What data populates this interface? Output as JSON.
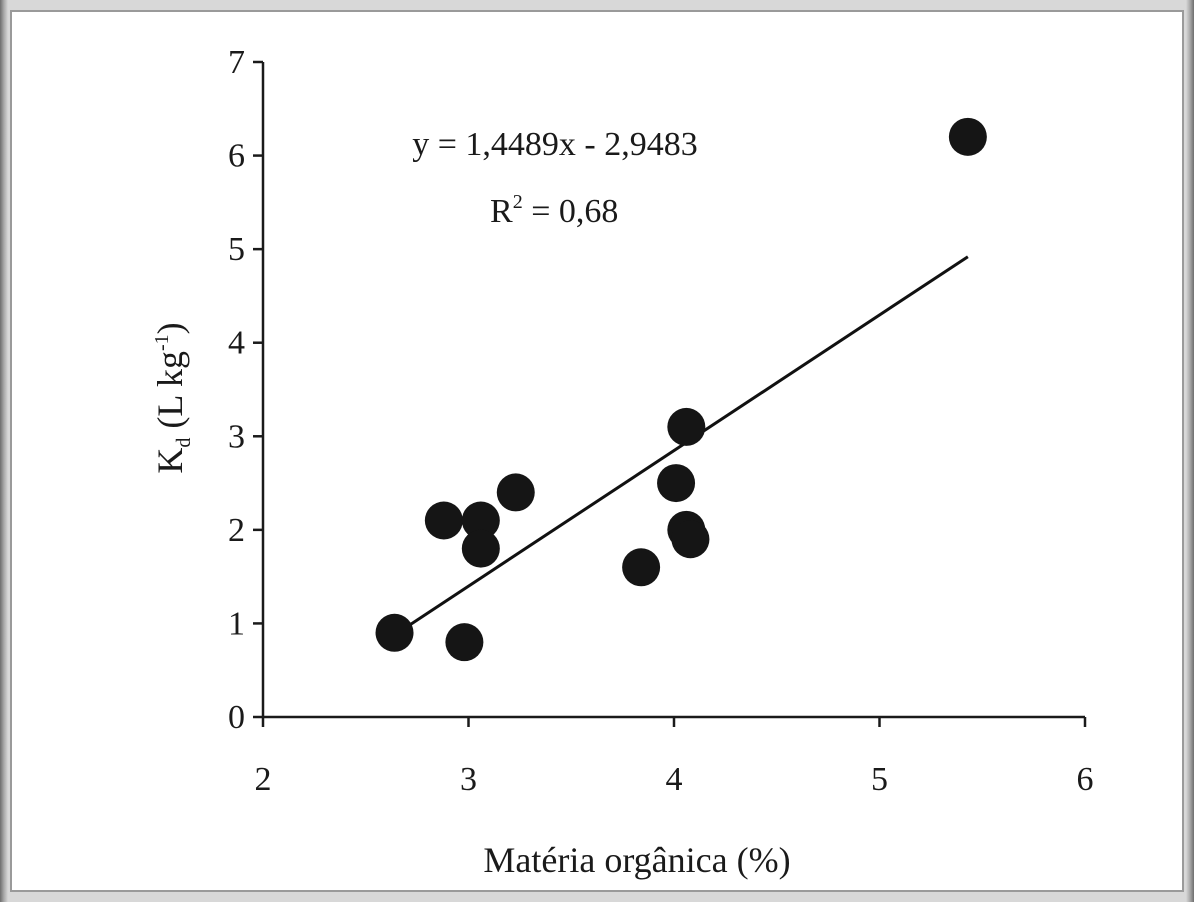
{
  "chart_data": {
    "type": "scatter",
    "title": "",
    "xlabel": "Matéria orgânica (%)",
    "ylabel_main": "K",
    "ylabel_sub": "d",
    "ylabel_rest": " (L kg",
    "ylabel_sup": "-1",
    "ylabel_close": ")",
    "xlim": [
      2,
      6
    ],
    "ylim": [
      0,
      7
    ],
    "xticks": [
      2,
      3,
      4,
      5,
      6
    ],
    "yticks": [
      0,
      1,
      2,
      3,
      4,
      5,
      6,
      7
    ],
    "grid": false,
    "points": [
      {
        "x": 2.64,
        "y": 0.9
      },
      {
        "x": 2.88,
        "y": 2.1
      },
      {
        "x": 2.98,
        "y": 0.8
      },
      {
        "x": 3.06,
        "y": 2.1
      },
      {
        "x": 3.06,
        "y": 1.8
      },
      {
        "x": 3.23,
        "y": 2.4
      },
      {
        "x": 3.84,
        "y": 1.6
      },
      {
        "x": 4.01,
        "y": 2.5
      },
      {
        "x": 4.06,
        "y": 3.1
      },
      {
        "x": 4.06,
        "y": 2.0
      },
      {
        "x": 4.08,
        "y": 1.9
      },
      {
        "x": 5.43,
        "y": 6.2
      }
    ],
    "trendline": {
      "slope": 1.4489,
      "intercept": -2.9483,
      "x_range": [
        2.71,
        5.43
      ]
    },
    "equation_label": "y = 1,4489x - 2,9483",
    "r2_label_main": "R",
    "r2_label_sup": "2",
    "r2_label_value": " = 0,68"
  }
}
